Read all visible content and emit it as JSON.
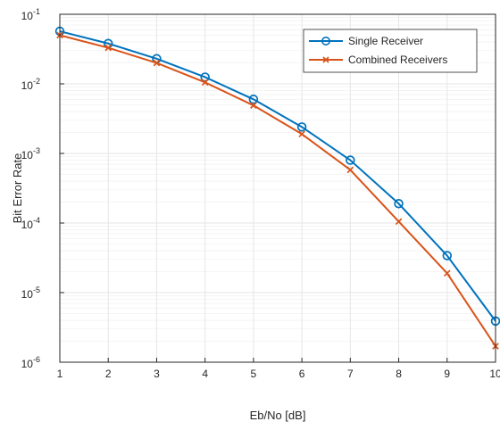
{
  "colors": {
    "series_1": "#0072BD",
    "series_2": "#D95319",
    "axis": "#262626",
    "grid": "#e6e6e6",
    "minor_grid": "#f2f2f2",
    "background": "#ffffff"
  },
  "chart_data": {
    "type": "line",
    "title": "",
    "xlabel": "Eb/No [dB]",
    "ylabel": "Bit Error Rate",
    "x": [
      1,
      2,
      3,
      4,
      5,
      6,
      7,
      8,
      9,
      10
    ],
    "xlim": [
      1,
      10
    ],
    "ylim": [
      1e-06,
      0.1
    ],
    "yscale": "log",
    "grid": true,
    "minor_grid": true,
    "legend_location": "top-right",
    "x_tick_labels": [
      "1",
      "2",
      "3",
      "4",
      "5",
      "6",
      "7",
      "8",
      "9",
      "10"
    ],
    "y_ticks": [
      {
        "base": "10",
        "exp": "-6"
      },
      {
        "base": "10",
        "exp": "-5"
      },
      {
        "base": "10",
        "exp": "-4"
      },
      {
        "base": "10",
        "exp": "-3"
      },
      {
        "base": "10",
        "exp": "-2"
      },
      {
        "base": "10",
        "exp": "-1"
      }
    ],
    "series": [
      {
        "name": "Single Receiver",
        "marker": "circle",
        "color": "#0072BD",
        "values": [
          0.057,
          0.038,
          0.023,
          0.0125,
          0.006,
          0.0024,
          0.0008,
          0.00019,
          3.4e-05,
          3.9e-06
        ]
      },
      {
        "name": "Combined Receivers",
        "marker": "x",
        "color": "#D95319",
        "values": [
          0.05,
          0.033,
          0.02,
          0.0105,
          0.0049,
          0.0019,
          0.00058,
          0.000105,
          1.9e-05,
          1.7e-06
        ]
      }
    ]
  }
}
